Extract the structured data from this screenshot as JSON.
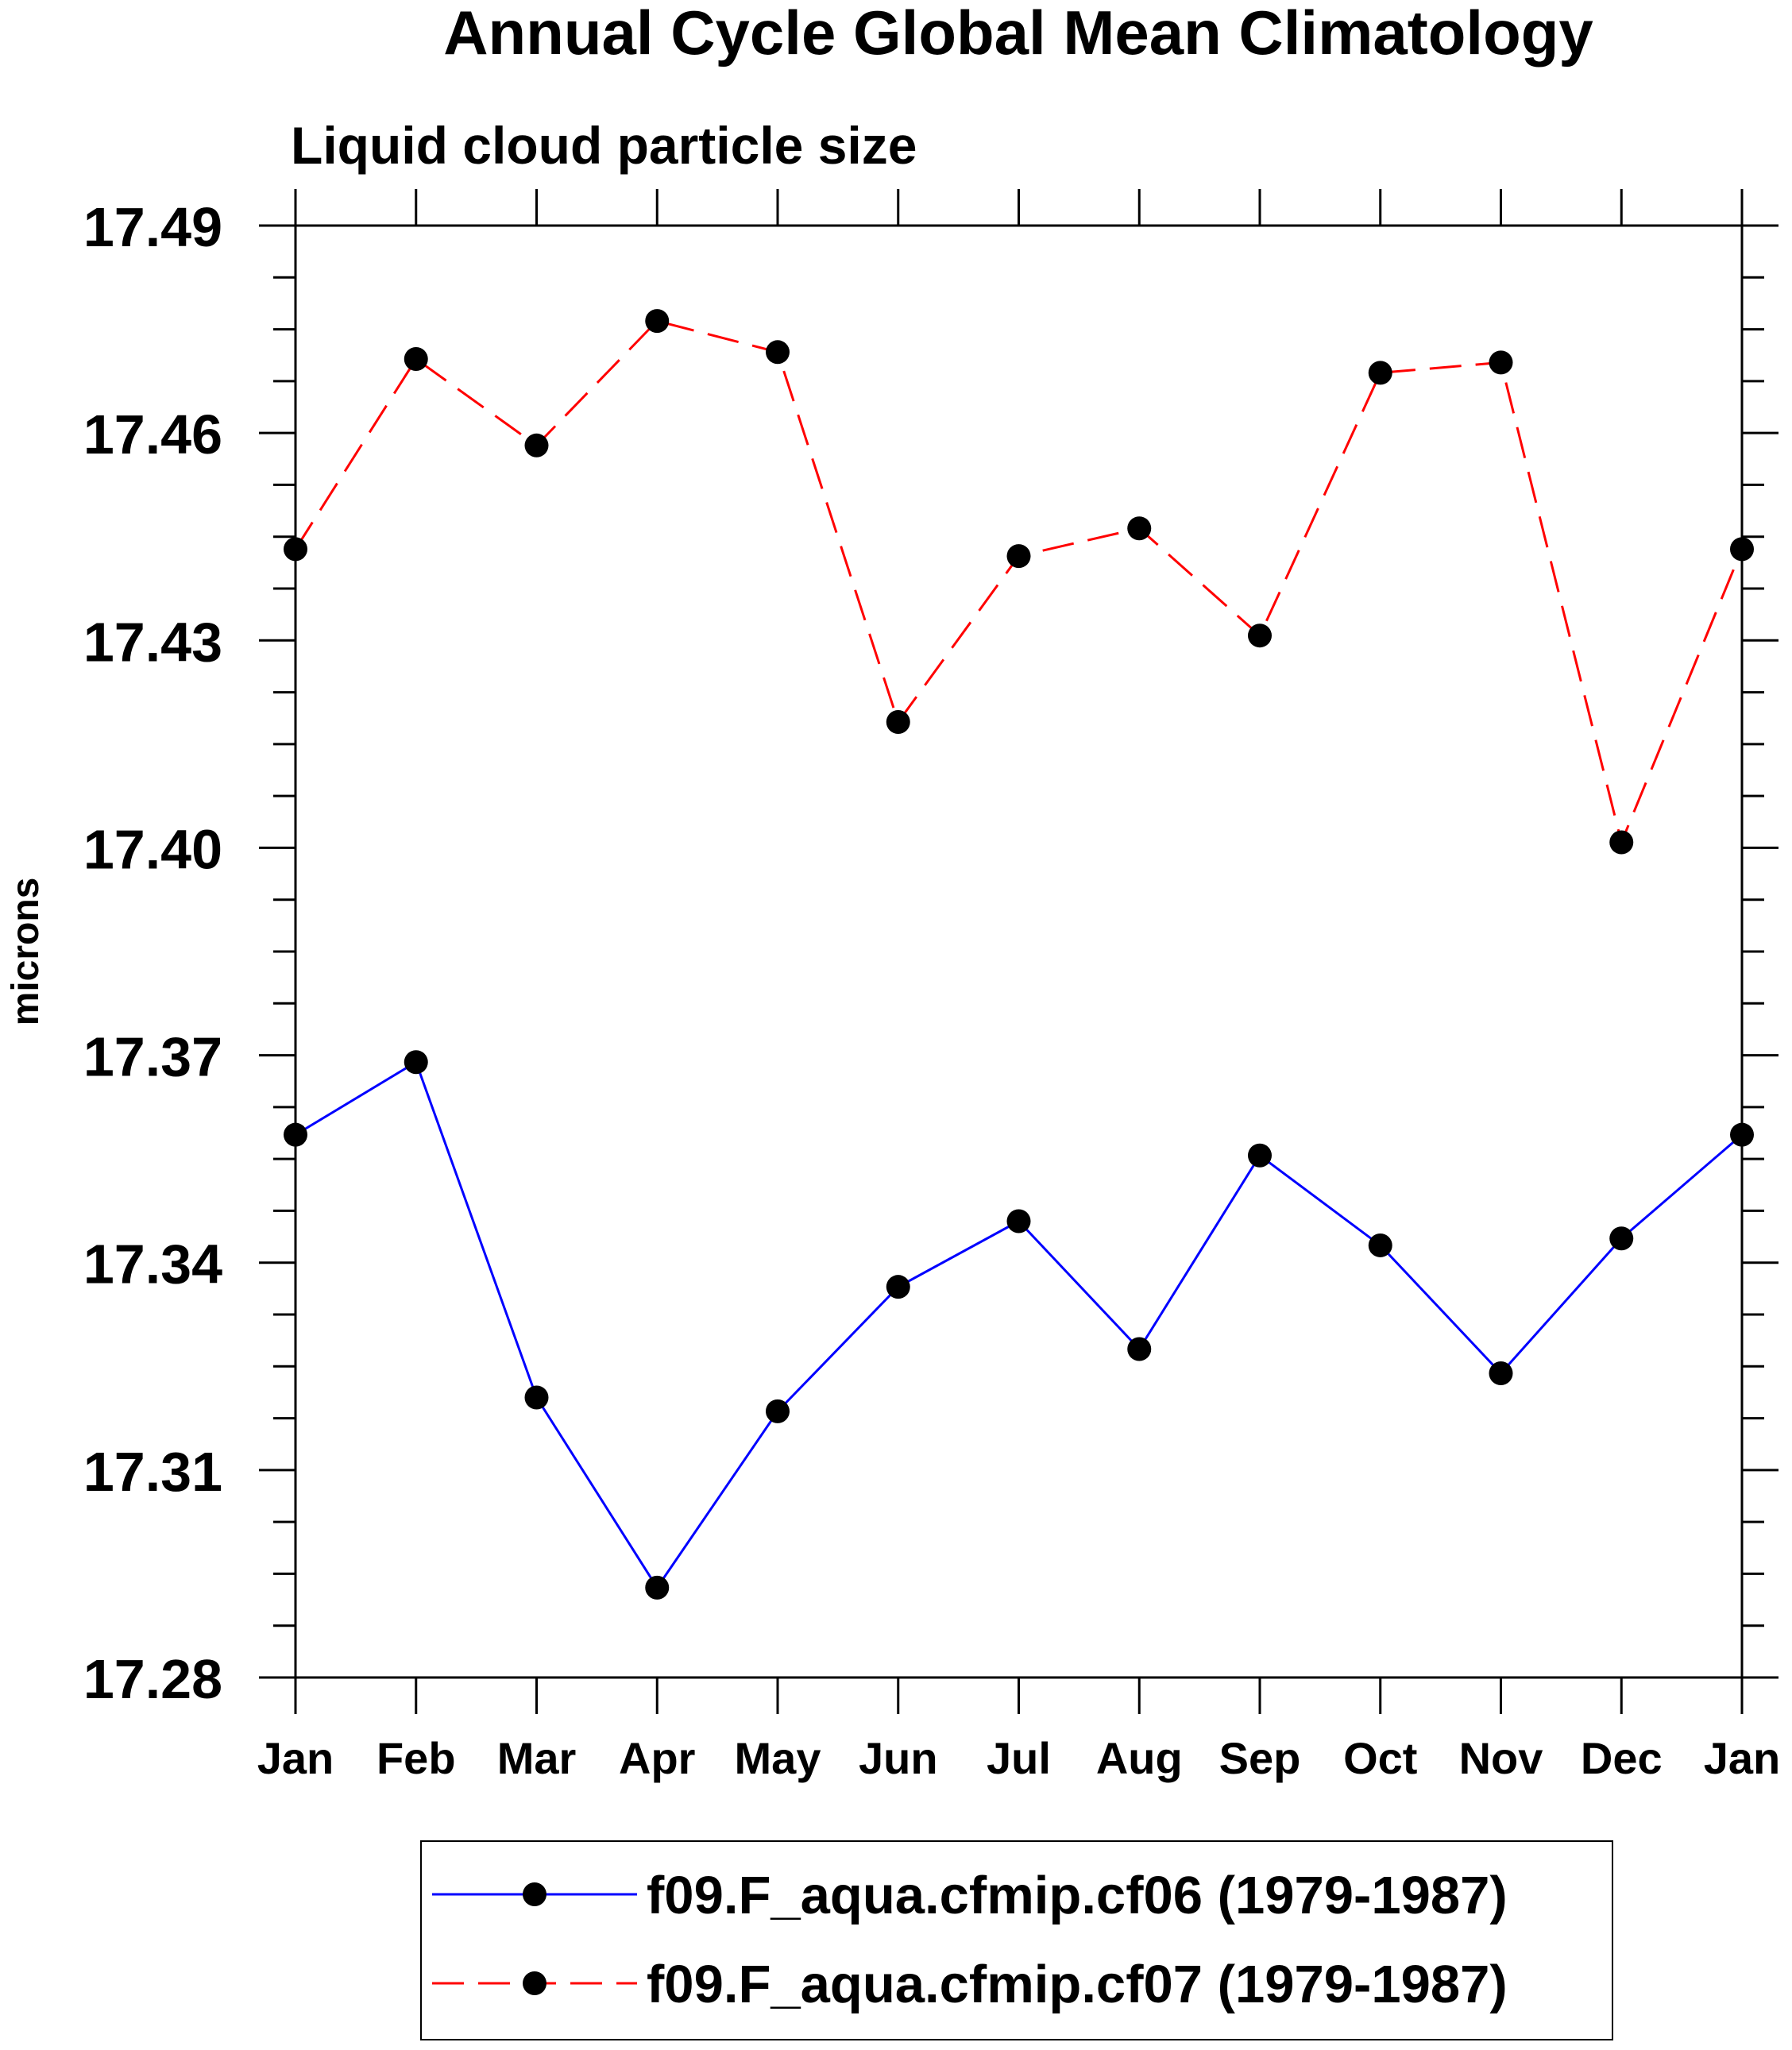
{
  "chart_data": {
    "type": "line",
    "title": "Annual Cycle Global Mean Climatology",
    "subtitle": "Liquid cloud particle size",
    "xlabel": "",
    "ylabel": "microns",
    "categories": [
      "Jan",
      "Feb",
      "Mar",
      "Apr",
      "May",
      "Jun",
      "Jul",
      "Aug",
      "Sep",
      "Oct",
      "Nov",
      "Dec",
      "Jan"
    ],
    "ylim": [
      17.28,
      17.49
    ],
    "yticks": [
      "17.28",
      "17.31",
      "17.34",
      "17.37",
      "17.40",
      "17.43",
      "17.46",
      "17.49"
    ],
    "grid": false,
    "legend_position": "bottom",
    "series": [
      {
        "name": "f09.F_aqua.cfmip.cf06 (1979-1987)",
        "color": "#0000ff",
        "dash": "solid",
        "marker": "filled-circle",
        "values": [
          17.3585,
          17.369,
          17.3205,
          17.293,
          17.3185,
          17.3365,
          17.346,
          17.3275,
          17.3555,
          17.3425,
          17.324,
          17.3435,
          17.3585
        ]
      },
      {
        "name": "f09.F_aqua.cfmip.cf07 (1979-1987)",
        "color": "#ff0000",
        "dash": "dashed",
        "marker": "filled-circle",
        "values": [
          17.4432,
          17.4707,
          17.4582,
          17.4762,
          17.4717,
          17.4182,
          17.4422,
          17.4462,
          17.4307,
          17.4687,
          17.4702,
          17.4008,
          17.4432
        ]
      }
    ]
  }
}
